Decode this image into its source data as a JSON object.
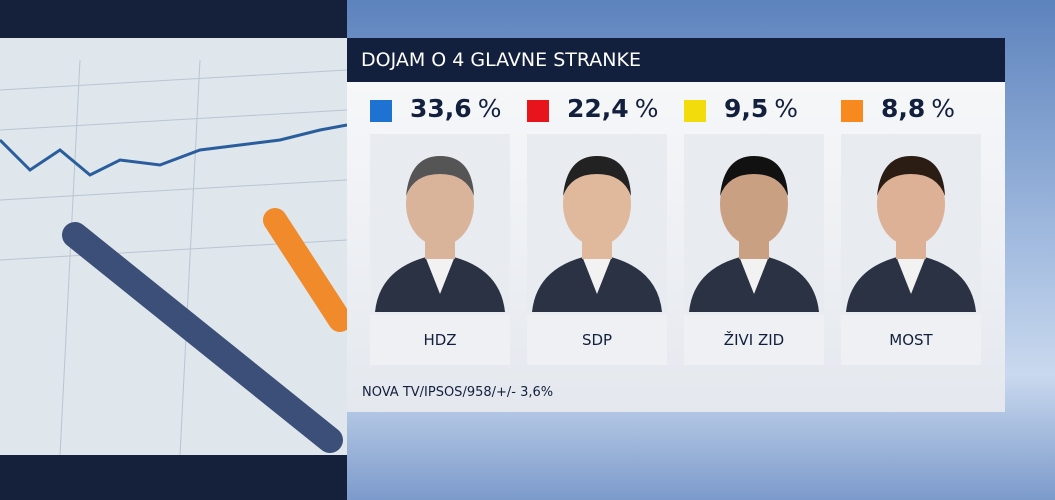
{
  "header": {
    "title": "DOJAM O 4 GLAVNE STRANKE"
  },
  "parties": [
    {
      "color": "#1e73d2",
      "value": "33,6",
      "unit": "%",
      "label": "HDZ"
    },
    {
      "color": "#e8141b",
      "value": "22,4",
      "unit": "%",
      "label": "SDP"
    },
    {
      "color": "#f3dc0c",
      "value": "9,5",
      "unit": "%",
      "label": "ŽIVI ZID"
    },
    {
      "color": "#f7891f",
      "value": "8,8",
      "unit": "%",
      "label": "MOST"
    }
  ],
  "footer": {
    "source": "NOVA TV/IPSOS/958/+/- 3,6%"
  }
}
